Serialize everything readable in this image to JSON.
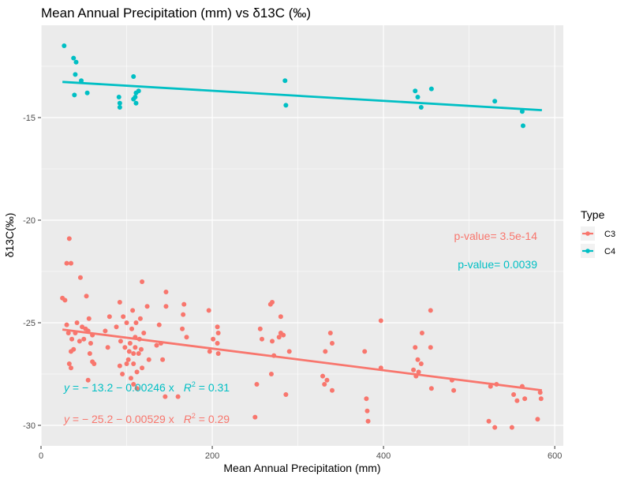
{
  "chart_data": {
    "type": "scatter",
    "title": "Mean Annual Precipitation (mm) vs  δ13C (‰)",
    "xlabel": "Mean Annual Precipitation (mm)",
    "ylabel": "δ13C(‰)",
    "xlim": [
      0,
      610
    ],
    "ylim": [
      -31,
      -10.5
    ],
    "x_ticks": [
      0,
      200,
      400,
      600
    ],
    "x_tick_labels": [
      "0",
      "200",
      "400",
      "600"
    ],
    "y_ticks": [
      -15,
      -20,
      -25,
      -30
    ],
    "y_tick_labels": [
      "-15",
      "-20",
      "-25",
      "-30"
    ],
    "grid": true,
    "legend": {
      "title": "Type",
      "position": "right"
    },
    "series": [
      {
        "name": "C3",
        "color": "#F8766D",
        "fit": {
          "intercept": -25.2,
          "slope": -0.00529,
          "x_range": [
            25,
            585
          ]
        },
        "equation": {
          "y": "y",
          "rhs": " = − 25.2 − 0.00529 x",
          "r2_label": "R",
          "r2_value": " = 0.29"
        },
        "p_value_text": "p-value= 3.5e-14",
        "points": [
          [
            25,
            -23.8
          ],
          [
            28,
            -23.9
          ],
          [
            30,
            -22.1
          ],
          [
            30,
            -25.1
          ],
          [
            32,
            -25.5
          ],
          [
            33,
            -27.0
          ],
          [
            33,
            -20.9
          ],
          [
            35,
            -22.1
          ],
          [
            35,
            -26.4
          ],
          [
            35,
            -27.2
          ],
          [
            36,
            -25.8
          ],
          [
            38,
            -26.3
          ],
          [
            40,
            -25.5
          ],
          [
            42,
            -25.0
          ],
          [
            45,
            -25.9
          ],
          [
            46,
            -22.8
          ],
          [
            48,
            -25.2
          ],
          [
            50,
            -25.8
          ],
          [
            52,
            -25.3
          ],
          [
            53,
            -23.7
          ],
          [
            55,
            -27.8
          ],
          [
            55,
            -25.4
          ],
          [
            56,
            -24.8
          ],
          [
            57,
            -26.5
          ],
          [
            58,
            -26.0
          ],
          [
            60,
            -26.9
          ],
          [
            60,
            -25.6
          ],
          [
            62,
            -27.0
          ],
          [
            75,
            -25.4
          ],
          [
            78,
            -26.2
          ],
          [
            80,
            -24.7
          ],
          [
            88,
            -25.2
          ],
          [
            92,
            -27.1
          ],
          [
            92,
            -24.0
          ],
          [
            93,
            -25.9
          ],
          [
            95,
            -27.5
          ],
          [
            96,
            -24.7
          ],
          [
            98,
            -26.2
          ],
          [
            100,
            -27.0
          ],
          [
            100,
            -25.0
          ],
          [
            102,
            -26.8
          ],
          [
            103,
            -26.4
          ],
          [
            104,
            -26.0
          ],
          [
            105,
            -27.7
          ],
          [
            106,
            -25.3
          ],
          [
            107,
            -24.4
          ],
          [
            108,
            -27.0
          ],
          [
            108,
            -26.5
          ],
          [
            108,
            -28.0
          ],
          [
            110,
            -26.2
          ],
          [
            110,
            -25.7
          ],
          [
            111,
            -25.0
          ],
          [
            112,
            -27.4
          ],
          [
            112,
            -28.2
          ],
          [
            114,
            -26.5
          ],
          [
            115,
            -25.8
          ],
          [
            116,
            -24.8
          ],
          [
            117,
            -26.3
          ],
          [
            118,
            -23.0
          ],
          [
            118,
            -27.2
          ],
          [
            120,
            -25.5
          ],
          [
            124,
            -24.2
          ],
          [
            126,
            -26.8
          ],
          [
            135,
            -26.1
          ],
          [
            138,
            -25.1
          ],
          [
            140,
            -26.0
          ],
          [
            142,
            -26.8
          ],
          [
            145,
            -28.6
          ],
          [
            146,
            -23.5
          ],
          [
            146,
            -24.2
          ],
          [
            160,
            -28.6
          ],
          [
            165,
            -25.3
          ],
          [
            166,
            -24.6
          ],
          [
            167,
            -24.1
          ],
          [
            170,
            -25.7
          ],
          [
            196,
            -24.4
          ],
          [
            197,
            -26.4
          ],
          [
            201,
            -25.8
          ],
          [
            206,
            -26.0
          ],
          [
            206,
            -25.2
          ],
          [
            207,
            -25.5
          ],
          [
            207,
            -26.5
          ],
          [
            250,
            -29.6
          ],
          [
            252,
            -28.0
          ],
          [
            256,
            -25.3
          ],
          [
            258,
            -25.8
          ],
          [
            268,
            -24.1
          ],
          [
            269,
            -27.5
          ],
          [
            270,
            -24.0
          ],
          [
            270,
            -25.9
          ],
          [
            272,
            -26.6
          ],
          [
            278,
            -25.7
          ],
          [
            280,
            -25.5
          ],
          [
            280,
            -24.7
          ],
          [
            283,
            -25.6
          ],
          [
            286,
            -28.5
          ],
          [
            290,
            -26.4
          ],
          [
            329,
            -27.6
          ],
          [
            331,
            -28.0
          ],
          [
            332,
            -26.4
          ],
          [
            334,
            -27.8
          ],
          [
            338,
            -25.5
          ],
          [
            340,
            -26.0
          ],
          [
            340,
            -28.3
          ],
          [
            378,
            -26.4
          ],
          [
            380,
            -28.7
          ],
          [
            381,
            -29.3
          ],
          [
            382,
            -29.8
          ],
          [
            397,
            -24.9
          ],
          [
            397,
            -27.2
          ],
          [
            435,
            -27.3
          ],
          [
            437,
            -26.2
          ],
          [
            438,
            -27.6
          ],
          [
            440,
            -26.8
          ],
          [
            441,
            -27.4
          ],
          [
            444,
            -27.0
          ],
          [
            445,
            -25.5
          ],
          [
            455,
            -26.2
          ],
          [
            455,
            -24.4
          ],
          [
            456,
            -28.2
          ],
          [
            480,
            -27.8
          ],
          [
            482,
            -28.3
          ],
          [
            523,
            -29.8
          ],
          [
            525,
            -28.1
          ],
          [
            530,
            -30.1
          ],
          [
            532,
            -28.0
          ],
          [
            550,
            -30.1
          ],
          [
            552,
            -28.5
          ],
          [
            556,
            -28.8
          ],
          [
            562,
            -28.1
          ],
          [
            565,
            -28.7
          ],
          [
            580,
            -29.7
          ],
          [
            583,
            -28.4
          ],
          [
            584,
            -28.7
          ]
        ]
      },
      {
        "name": "C4",
        "color": "#00BFC4",
        "fit": {
          "intercept": -13.2,
          "slope": -0.00246,
          "x_range": [
            25,
            585
          ]
        },
        "equation": {
          "y": "y",
          "rhs": " = − 13.2 − 0.00246 x",
          "r2_label": "R",
          "r2_value": " = 0.31"
        },
        "p_value_text": "p-value= 0.0039",
        "points": [
          [
            27,
            -11.5
          ],
          [
            38,
            -12.1
          ],
          [
            40,
            -12.9
          ],
          [
            39,
            -13.9
          ],
          [
            41,
            -12.3
          ],
          [
            47,
            -13.2
          ],
          [
            54,
            -13.8
          ],
          [
            91,
            -14.0
          ],
          [
            92,
            -14.3
          ],
          [
            92,
            -14.5
          ],
          [
            108,
            -13.0
          ],
          [
            108,
            -14.1
          ],
          [
            110,
            -14.0
          ],
          [
            111,
            -13.8
          ],
          [
            111,
            -14.3
          ],
          [
            114,
            -13.7
          ],
          [
            285,
            -13.2
          ],
          [
            286,
            -14.4
          ],
          [
            437,
            -13.7
          ],
          [
            440,
            -14.0
          ],
          [
            444,
            -14.5
          ],
          [
            456,
            -13.6
          ],
          [
            530,
            -14.2
          ],
          [
            562,
            -14.7
          ],
          [
            563,
            -15.4
          ]
        ]
      }
    ]
  }
}
